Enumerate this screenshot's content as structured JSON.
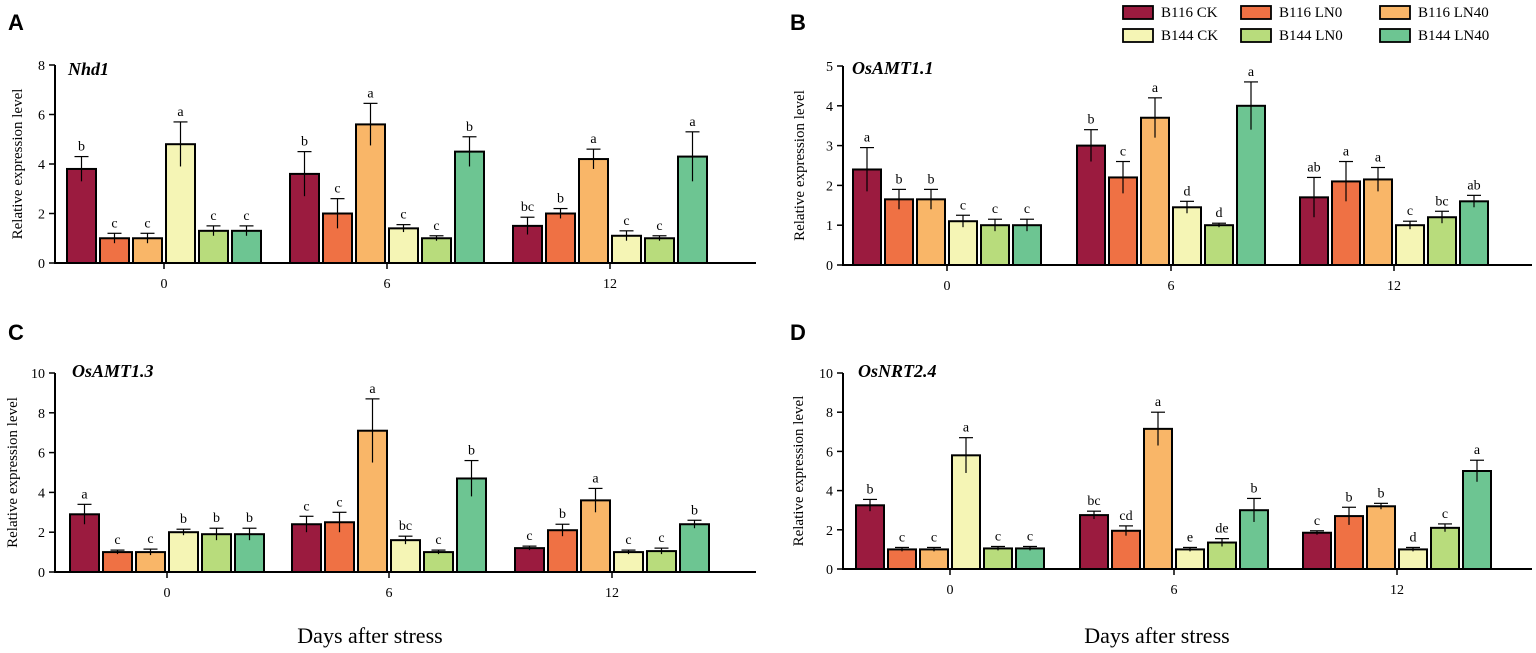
{
  "x_axis_title": "Days after stress",
  "legend": [
    {
      "label": "B116 CK",
      "color": "#9b1b3f"
    },
    {
      "label": "B116 LN0",
      "color": "#ef7144"
    },
    {
      "label": "B116 LN40",
      "color": "#f9b668"
    },
    {
      "label": "B144 CK",
      "color": "#f5f5b5"
    },
    {
      "label": "B144 LN0",
      "color": "#b8dc7c"
    },
    {
      "label": "B144 LN40",
      "color": "#6dc592"
    }
  ],
  "chart_data": [
    {
      "type": "bar",
      "panel": "A",
      "title": "Nhd1",
      "ylabel": "Relative expression level",
      "xlabel": "Days after stress",
      "categories": [
        "0",
        "6",
        "12"
      ],
      "ylim": [
        0,
        8
      ],
      "yticks": [
        0,
        2,
        4,
        6,
        8
      ],
      "series": [
        {
          "name": "B116 CK",
          "values": [
            3.8,
            3.6,
            1.5
          ],
          "errors": [
            0.5,
            0.9,
            0.35
          ],
          "letters": [
            "b",
            "b",
            "bc"
          ]
        },
        {
          "name": "B116 LN0",
          "values": [
            1.0,
            2.0,
            2.0
          ],
          "errors": [
            0.2,
            0.6,
            0.2
          ],
          "letters": [
            "c",
            "c",
            "b"
          ]
        },
        {
          "name": "B116 LN40",
          "values": [
            1.0,
            5.6,
            4.2
          ],
          "errors": [
            0.2,
            0.85,
            0.4
          ],
          "letters": [
            "c",
            "a",
            "a"
          ]
        },
        {
          "name": "B144 CK",
          "values": [
            4.8,
            1.4,
            1.1
          ],
          "errors": [
            0.9,
            0.15,
            0.2
          ],
          "letters": [
            "a",
            "c",
            "c"
          ]
        },
        {
          "name": "B144 LN0",
          "values": [
            1.3,
            1.0,
            1.0
          ],
          "errors": [
            0.2,
            0.1,
            0.1
          ],
          "letters": [
            "c",
            "c",
            "c"
          ]
        },
        {
          "name": "B144 LN40",
          "values": [
            1.3,
            4.5,
            4.3
          ],
          "errors": [
            0.2,
            0.6,
            1.0
          ],
          "letters": [
            "c",
            "b",
            "a"
          ]
        }
      ]
    },
    {
      "type": "bar",
      "panel": "B",
      "title": "OsAMT1.1",
      "ylabel": "Relative expression level",
      "xlabel": "Days after stress",
      "categories": [
        "0",
        "6",
        "12"
      ],
      "ylim": [
        0,
        5
      ],
      "yticks": [
        0,
        1,
        2,
        3,
        4,
        5
      ],
      "series": [
        {
          "name": "B116 CK",
          "values": [
            2.4,
            3.0,
            1.7
          ],
          "errors": [
            0.55,
            0.4,
            0.5
          ],
          "letters": [
            "a",
            "b",
            "ab"
          ]
        },
        {
          "name": "B116 LN0",
          "values": [
            1.65,
            2.2,
            2.1
          ],
          "errors": [
            0.25,
            0.4,
            0.5
          ],
          "letters": [
            "b",
            "c",
            "a"
          ]
        },
        {
          "name": "B116 LN40",
          "values": [
            1.65,
            3.7,
            2.15
          ],
          "errors": [
            0.25,
            0.5,
            0.3
          ],
          "letters": [
            "b",
            "a",
            "a"
          ]
        },
        {
          "name": "B144 CK",
          "values": [
            1.1,
            1.45,
            1.0
          ],
          "errors": [
            0.15,
            0.15,
            0.1
          ],
          "letters": [
            "c",
            "d",
            "c"
          ]
        },
        {
          "name": "B144 LN0",
          "values": [
            1.0,
            1.0,
            1.2
          ],
          "errors": [
            0.15,
            0.05,
            0.15
          ],
          "letters": [
            "c",
            "d",
            "bc"
          ]
        },
        {
          "name": "B144 LN40",
          "values": [
            1.0,
            4.0,
            1.6
          ],
          "errors": [
            0.15,
            0.6,
            0.15
          ],
          "letters": [
            "c",
            "a",
            "ab"
          ]
        }
      ]
    },
    {
      "type": "bar",
      "panel": "C",
      "title": "OsAMT1.3",
      "ylabel": "Relative expression level",
      "xlabel": "Days after stress",
      "categories": [
        "0",
        "6",
        "12"
      ],
      "ylim": [
        0,
        10
      ],
      "yticks": [
        0,
        2,
        4,
        6,
        8,
        10
      ],
      "series": [
        {
          "name": "B116 CK",
          "values": [
            2.9,
            2.4,
            1.2
          ],
          "errors": [
            0.5,
            0.4,
            0.1
          ],
          "letters": [
            "a",
            "c",
            "c"
          ]
        },
        {
          "name": "B116 LN0",
          "values": [
            1.0,
            2.5,
            2.1
          ],
          "errors": [
            0.1,
            0.5,
            0.3
          ],
          "letters": [
            "c",
            "c",
            "b"
          ]
        },
        {
          "name": "B116 LN40",
          "values": [
            1.0,
            7.1,
            3.6
          ],
          "errors": [
            0.15,
            1.6,
            0.6
          ],
          "letters": [
            "c",
            "a",
            "a"
          ]
        },
        {
          "name": "B144 CK",
          "values": [
            2.0,
            1.6,
            1.0
          ],
          "errors": [
            0.15,
            0.2,
            0.1
          ],
          "letters": [
            "b",
            "bc",
            "c"
          ]
        },
        {
          "name": "B144 LN0",
          "values": [
            1.9,
            1.0,
            1.05
          ],
          "errors": [
            0.3,
            0.1,
            0.15
          ],
          "letters": [
            "b",
            "c",
            "c"
          ]
        },
        {
          "name": "B144 LN40",
          "values": [
            1.9,
            4.7,
            2.4
          ],
          "errors": [
            0.3,
            0.9,
            0.2
          ],
          "letters": [
            "b",
            "b",
            "b"
          ]
        }
      ]
    },
    {
      "type": "bar",
      "panel": "D",
      "title": "OsNRT2.4",
      "ylabel": "Relative expression level",
      "xlabel": "Days after stress",
      "categories": [
        "0",
        "6",
        "12"
      ],
      "ylim": [
        0,
        10
      ],
      "yticks": [
        0,
        2,
        4,
        6,
        8,
        10
      ],
      "series": [
        {
          "name": "B116 CK",
          "values": [
            3.25,
            2.75,
            1.85
          ],
          "errors": [
            0.3,
            0.2,
            0.1
          ],
          "letters": [
            "b",
            "bc",
            "c"
          ]
        },
        {
          "name": "B116 LN0",
          "values": [
            1.0,
            1.95,
            2.7
          ],
          "errors": [
            0.1,
            0.25,
            0.45
          ],
          "letters": [
            "c",
            "cd",
            "b"
          ]
        },
        {
          "name": "B116 LN40",
          "values": [
            1.0,
            7.15,
            3.2
          ],
          "errors": [
            0.1,
            0.85,
            0.15
          ],
          "letters": [
            "c",
            "a",
            "b"
          ]
        },
        {
          "name": "B144 CK",
          "values": [
            5.8,
            1.0,
            1.0
          ],
          "errors": [
            0.9,
            0.1,
            0.1
          ],
          "letters": [
            "a",
            "e",
            "d"
          ]
        },
        {
          "name": "B144 LN0",
          "values": [
            1.05,
            1.35,
            2.1
          ],
          "errors": [
            0.1,
            0.2,
            0.2
          ],
          "letters": [
            "c",
            "de",
            "c"
          ]
        },
        {
          "name": "B144 LN40",
          "values": [
            1.05,
            3.0,
            5.0
          ],
          "errors": [
            0.1,
            0.6,
            0.55
          ],
          "letters": [
            "c",
            "b",
            "a"
          ]
        }
      ]
    }
  ]
}
